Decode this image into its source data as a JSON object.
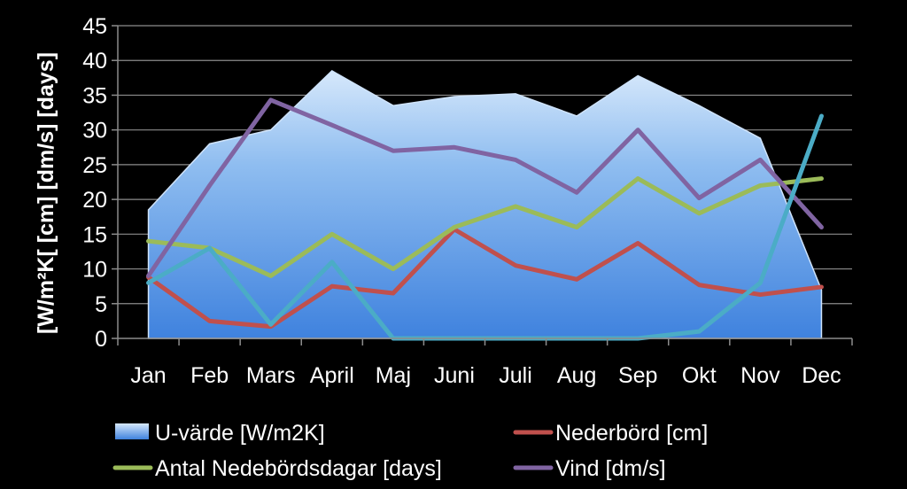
{
  "chart_data": {
    "type": "line",
    "categories": [
      "Jan",
      "Feb",
      "Mars",
      "April",
      "Maj",
      "Juni",
      "Juli",
      "Aug",
      "Sep",
      "Okt",
      "Nov",
      "Dec"
    ],
    "ylabel": "[W/m²K[ [cm] [dm/s] [days]",
    "ylim": [
      0,
      45
    ],
    "yticks": [
      0,
      5,
      10,
      15,
      20,
      25,
      30,
      35,
      40,
      45
    ],
    "grid": true,
    "legend_position": "bottom",
    "series": [
      {
        "name": "U-värde [W/m2K]",
        "type": "area",
        "color": "#5b9bd5",
        "values": [
          18.5,
          28,
          30,
          38.5,
          33.5,
          34.8,
          35.2,
          32,
          37.8,
          33.5,
          28.8,
          7
        ]
      },
      {
        "name": "Nederbörd [cm]",
        "type": "line",
        "color": "#c0504d",
        "values": [
          8.8,
          2.5,
          1.7,
          7.5,
          6.5,
          15.7,
          10.5,
          8.5,
          13.7,
          7.7,
          6.3,
          7.4
        ]
      },
      {
        "name": "Antal Nedebördsdagar [days]",
        "type": "line",
        "color": "#9bbb59",
        "values": [
          14,
          13,
          9,
          15,
          10,
          16,
          19,
          16,
          23,
          18,
          22,
          23
        ]
      },
      {
        "name": "Vind [dm/s]",
        "type": "line",
        "color": "#8064a2",
        "values": [
          9,
          22,
          34.3,
          30.7,
          27,
          27.5,
          25.7,
          21,
          30,
          20.2,
          25.7,
          16
        ]
      },
      {
        "name": "",
        "type": "line",
        "color": "#4bacc6",
        "values": [
          8,
          13,
          2,
          11,
          0,
          0,
          0,
          0,
          0,
          1,
          8,
          32
        ]
      }
    ]
  }
}
